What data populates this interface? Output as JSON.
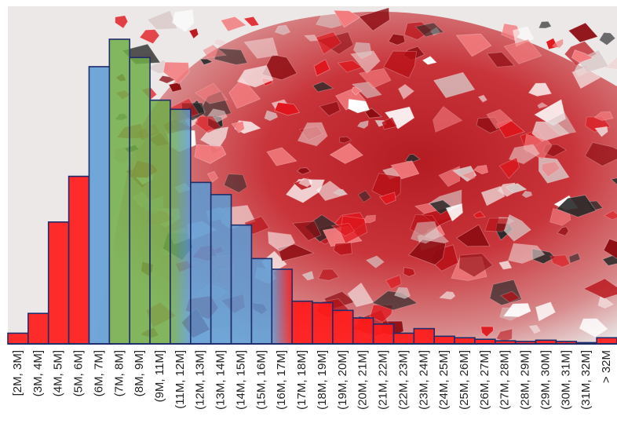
{
  "chart_data": {
    "type": "bar",
    "title": "",
    "xlabel": "",
    "ylabel": "",
    "background": "photo of a pile of red, clear and black crushed glass",
    "categories": [
      "[2M, 3M]",
      "(3M, 4M]",
      "(4M, 5M]",
      "(5M, 6M]",
      "(6M, 7M]",
      "(7M, 8M]",
      "(8M, 9M]",
      "(9M, 11M]",
      "(11M, 12M]",
      "(12M, 13M]",
      "(13M, 14M]",
      "(14M, 15M]",
      "(15M, 16M]",
      "(16M, 17M]",
      "(17M, 18M]",
      "(18M, 19M]",
      "(19M, 20M]",
      "(20M, 21M]",
      "(21M, 22M]",
      "(22M, 23M]",
      "(23M, 24M]",
      "(24M, 25M]",
      "(25M, 26M]",
      "(26M, 27M]",
      "(27M, 28M]",
      "(28M, 29M]",
      "(29M, 30M]",
      "(30M, 31M]",
      "(31M, 32M]",
      "> 32M"
    ],
    "values": [
      3.5,
      10,
      40,
      55,
      91,
      100,
      94,
      80,
      77,
      53,
      49,
      39,
      28,
      24.5,
      14,
      13.5,
      11,
      8.5,
      6.5,
      3.5,
      5,
      2.5,
      2,
      1.5,
      1,
      0.8,
      1.2,
      0.8,
      0.4,
      2
    ],
    "bar_colors": [
      "#ff1a1a",
      "#ff1a1a",
      "#ff1a1a",
      "#ff1a1a",
      "#5b9bd5",
      "#70ad47",
      "#70ad47",
      "#70ad47",
      "green-blue-gradient",
      "#5b9bd5",
      "#5b9bd5",
      "#5b9bd5",
      "#5b9bd5",
      "blue-red-gradient",
      "#ff1a1a",
      "#ff1a1a",
      "#ff1a1a",
      "#ff1a1a",
      "#ff1a1a",
      "#ff1a1a",
      "#ff1a1a",
      "#ff1a1a",
      "#ff1a1a",
      "#ff1a1a",
      "#ff1a1a",
      "#ff1a1a",
      "#ff1a1a",
      "#ff1a1a",
      "#ff1a1a",
      "#ff1a1a"
    ],
    "bar_outline": "#1f2d6b",
    "ylim": [
      0,
      100
    ],
    "grid": false,
    "legend": "none"
  }
}
